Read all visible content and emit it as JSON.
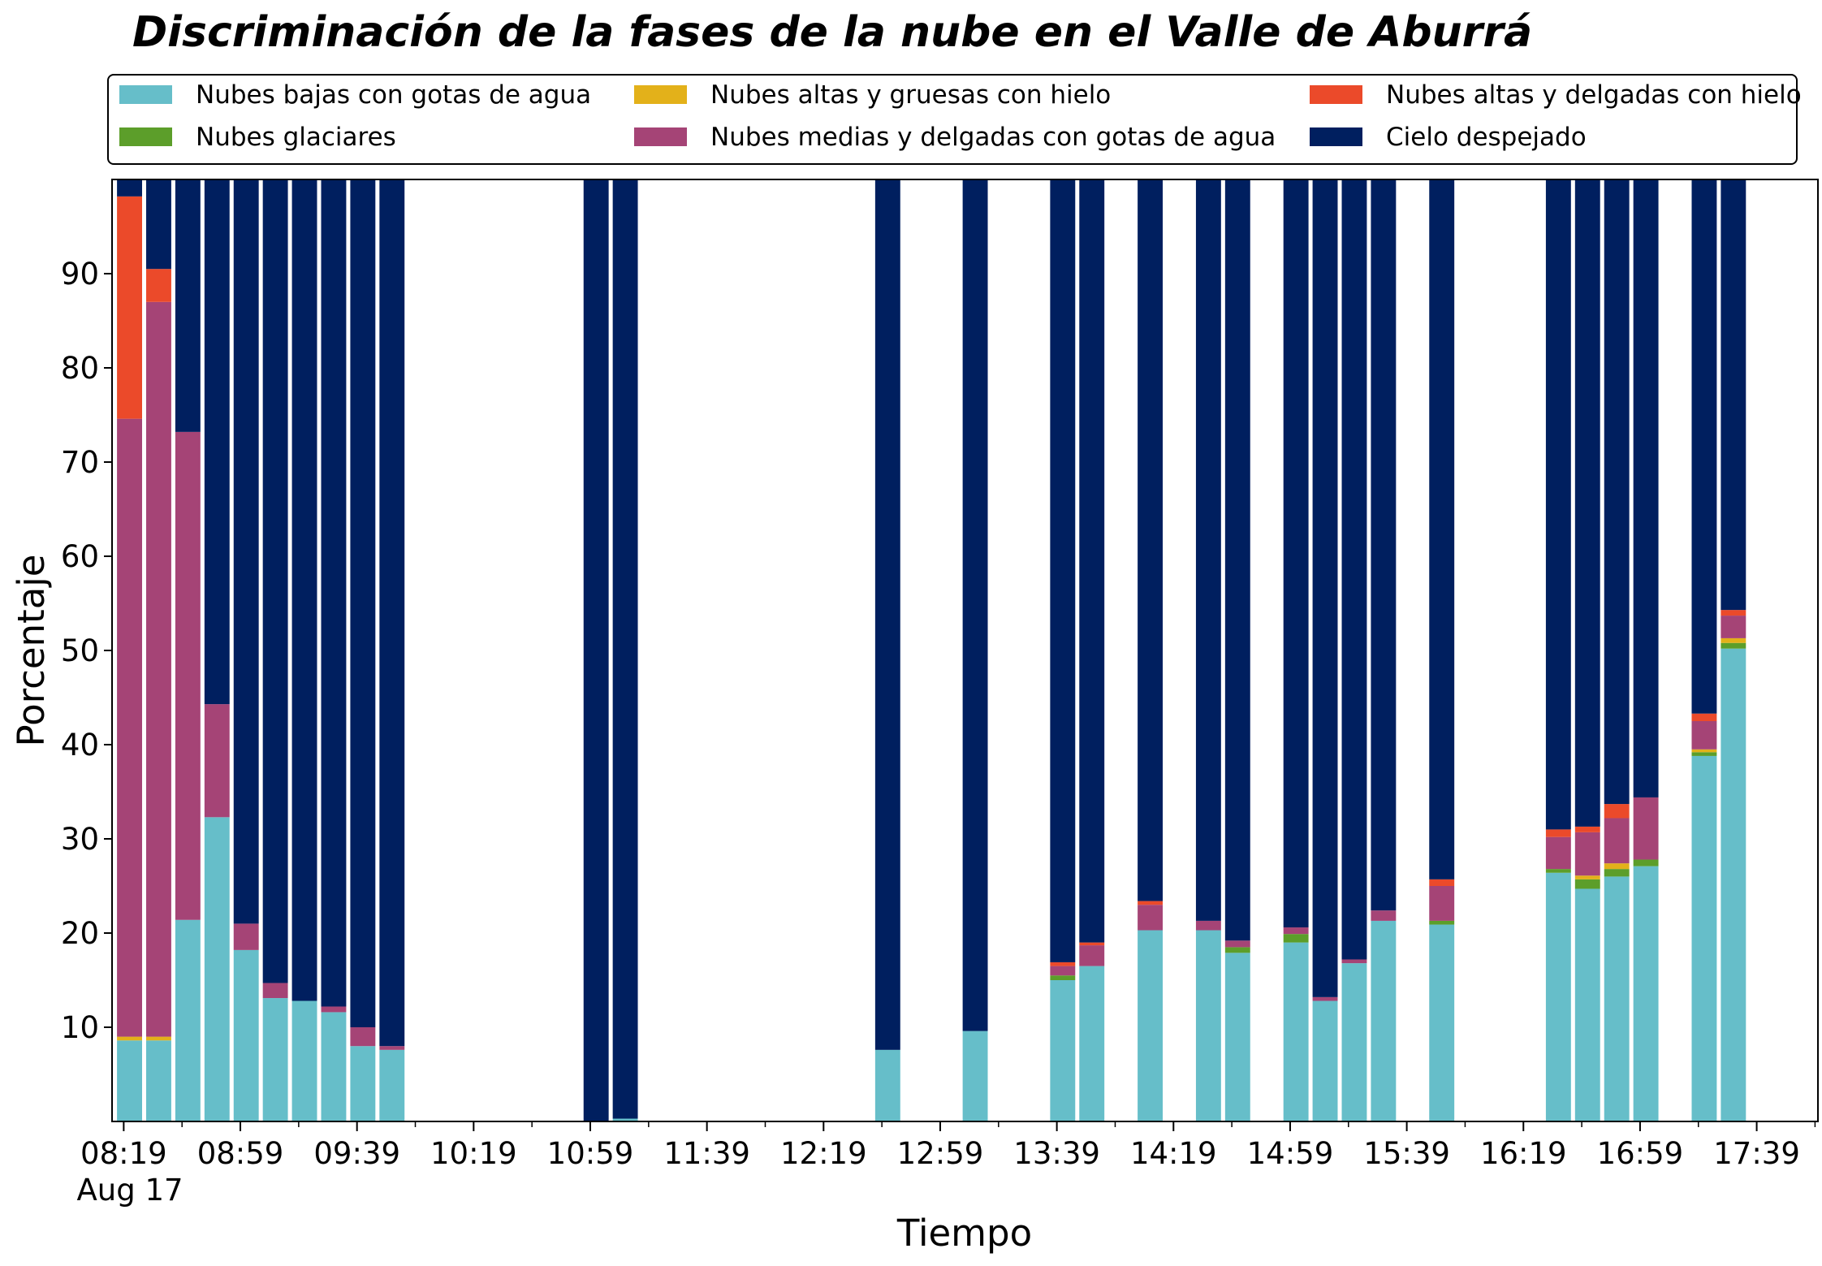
{
  "chart_data": {
    "type": "bar",
    "stacked": true,
    "title": "Discriminación de la fases de la nube en el Valle de Aburrá",
    "xlabel": "Tiempo",
    "ylabel": "Porcentaje",
    "ylim": [
      0,
      100
    ],
    "y_ticks": [
      10,
      20,
      30,
      40,
      50,
      60,
      70,
      80,
      90
    ],
    "x_range_minutes": [
      495,
      1080
    ],
    "x_tick_minutes": [
      499,
      539,
      579,
      619,
      659,
      699,
      739,
      779,
      819,
      859,
      899,
      939,
      979,
      1019,
      1059
    ],
    "x_tick_labels": [
      "08:19",
      "08:59",
      "09:39",
      "10:19",
      "10:59",
      "11:39",
      "12:19",
      "12:59",
      "13:39",
      "14:19",
      "14:59",
      "15:39",
      "16:19",
      "16:59",
      "17:39"
    ],
    "x_tick_sublabel": "Aug 17",
    "legend_position": "top",
    "legend_columns": 3,
    "grid": false,
    "series": [
      {
        "name": "Nubes bajas con gotas de agua",
        "color": "#66BEC9"
      },
      {
        "name": "Nubes glaciares",
        "color": "#5C9E2A"
      },
      {
        "name": "Nubes altas y gruesas con hielo",
        "color": "#E3B11A"
      },
      {
        "name": "Nubes medias y delgadas con gotas de agua",
        "color": "#A54476"
      },
      {
        "name": "Nubes altas y delgadas con hielo",
        "color": "#EB4A2A"
      },
      {
        "name": "Cielo despejado",
        "color": "#001F5F"
      }
    ],
    "bars": [
      {
        "time": "08:21",
        "values": [
          8.6,
          0.0,
          0.4,
          65.6,
          23.6,
          1.8
        ]
      },
      {
        "time": "08:31",
        "values": [
          8.6,
          0.0,
          0.4,
          78.0,
          3.5,
          9.5
        ]
      },
      {
        "time": "08:41",
        "values": [
          21.4,
          0.0,
          0.0,
          51.8,
          0.0,
          26.8
        ]
      },
      {
        "time": "08:51",
        "values": [
          32.3,
          0.0,
          0.0,
          12.0,
          0.0,
          55.7
        ]
      },
      {
        "time": "09:01",
        "values": [
          18.2,
          0.0,
          0.0,
          2.8,
          0.0,
          79.0
        ]
      },
      {
        "time": "09:11",
        "values": [
          13.1,
          0.0,
          0.0,
          1.6,
          0.0,
          85.3
        ]
      },
      {
        "time": "09:21",
        "values": [
          12.8,
          0.0,
          0.0,
          0.0,
          0.0,
          87.2
        ]
      },
      {
        "time": "09:31",
        "values": [
          11.6,
          0.0,
          0.0,
          0.6,
          0.0,
          87.8
        ]
      },
      {
        "time": "09:41",
        "values": [
          8.0,
          0.0,
          0.0,
          2.0,
          0.0,
          90.0
        ]
      },
      {
        "time": "09:51",
        "values": [
          7.6,
          0.0,
          0.0,
          0.4,
          0.0,
          92.0
        ]
      },
      {
        "time": "11:01",
        "values": [
          0.0,
          0.0,
          0.0,
          0.0,
          0.0,
          100.0
        ]
      },
      {
        "time": "11:11",
        "values": [
          0.3,
          0.0,
          0.0,
          0.0,
          0.0,
          99.7
        ]
      },
      {
        "time": "12:41",
        "values": [
          7.6,
          0.0,
          0.0,
          0.0,
          0.0,
          92.4
        ]
      },
      {
        "time": "13:11",
        "values": [
          9.6,
          0.0,
          0.0,
          0.0,
          0.0,
          90.4
        ]
      },
      {
        "time": "13:41",
        "values": [
          15.0,
          0.5,
          0.0,
          1.0,
          0.4,
          83.1
        ]
      },
      {
        "time": "13:51",
        "values": [
          16.5,
          0.0,
          0.0,
          2.2,
          0.3,
          81.0
        ]
      },
      {
        "time": "14:11",
        "values": [
          20.3,
          0.0,
          0.0,
          2.7,
          0.4,
          76.6
        ]
      },
      {
        "time": "14:31",
        "values": [
          20.3,
          0.0,
          0.0,
          1.0,
          0.0,
          78.7
        ]
      },
      {
        "time": "14:41",
        "values": [
          17.9,
          0.6,
          0.0,
          0.7,
          0.0,
          80.8
        ]
      },
      {
        "time": "15:01",
        "values": [
          19.0,
          0.9,
          0.0,
          0.7,
          0.0,
          79.4
        ]
      },
      {
        "time": "15:11",
        "values": [
          12.8,
          0.0,
          0.0,
          0.4,
          0.0,
          86.8
        ]
      },
      {
        "time": "15:21",
        "values": [
          16.8,
          0.0,
          0.0,
          0.4,
          0.0,
          82.8
        ]
      },
      {
        "time": "15:31",
        "values": [
          21.3,
          0.0,
          0.0,
          1.1,
          0.0,
          77.6
        ]
      },
      {
        "time": "15:51",
        "values": [
          20.9,
          0.4,
          0.0,
          3.7,
          0.7,
          74.3
        ]
      },
      {
        "time": "16:31",
        "values": [
          26.4,
          0.4,
          0.0,
          3.4,
          0.8,
          69.0
        ]
      },
      {
        "time": "16:41",
        "values": [
          24.7,
          1.0,
          0.4,
          4.6,
          0.6,
          68.7
        ]
      },
      {
        "time": "16:51",
        "values": [
          26.0,
          0.8,
          0.6,
          4.8,
          1.5,
          66.3
        ]
      },
      {
        "time": "17:01",
        "values": [
          27.1,
          0.7,
          0.0,
          6.6,
          0.0,
          65.6
        ]
      },
      {
        "time": "17:21",
        "values": [
          38.8,
          0.4,
          0.3,
          3.0,
          0.8,
          56.7
        ]
      },
      {
        "time": "17:31",
        "values": [
          50.2,
          0.6,
          0.5,
          2.4,
          0.6,
          45.7
        ]
      }
    ]
  }
}
